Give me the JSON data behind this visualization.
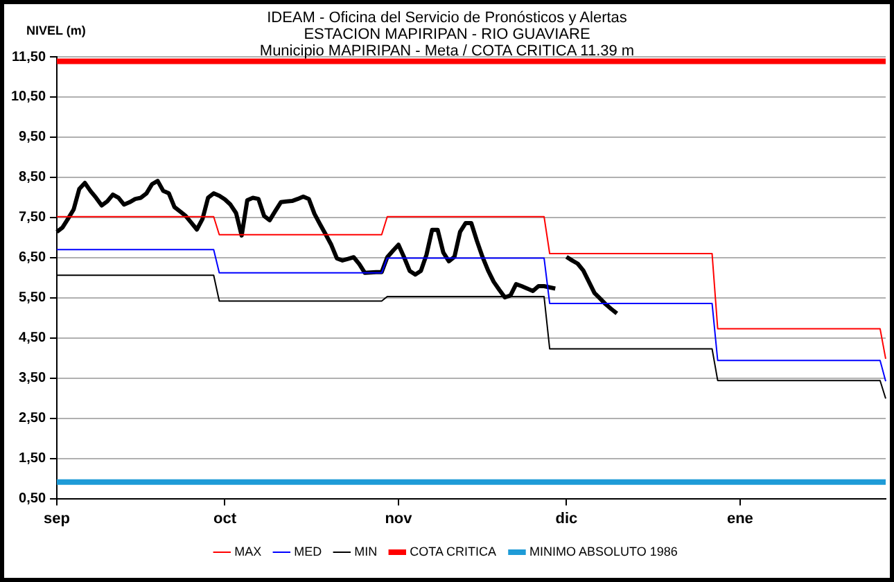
{
  "chart_data": {
    "type": "line",
    "title": "IDEAM - Oficina del Servicio de Pronósticos y Alertas",
    "subtitle": "ESTACION MAPIRIPAN - RIO GUAVIARE\nMunicipio MAPIRIPAN - Meta / COTA CRITICA 11.39 m",
    "ylabel": "NIVEL (m)",
    "categories": [
      "sep",
      null,
      null,
      null,
      null,
      null,
      null,
      null,
      null,
      null,
      null,
      null,
      null,
      null,
      null,
      null,
      null,
      null,
      null,
      null,
      null,
      null,
      null,
      null,
      null,
      null,
      null,
      null,
      null,
      null,
      "oct",
      null,
      null,
      null,
      null,
      null,
      null,
      null,
      null,
      null,
      null,
      null,
      null,
      null,
      null,
      null,
      null,
      null,
      null,
      null,
      null,
      null,
      null,
      null,
      null,
      null,
      null,
      null,
      null,
      null,
      null,
      "nov",
      null,
      null,
      null,
      null,
      null,
      null,
      null,
      null,
      null,
      null,
      null,
      null,
      null,
      null,
      null,
      null,
      null,
      null,
      null,
      null,
      null,
      null,
      null,
      null,
      null,
      null,
      null,
      null,
      null,
      "dic",
      null,
      null,
      null,
      null,
      null,
      null,
      null,
      null,
      null,
      null,
      null,
      null,
      null,
      null,
      null,
      null,
      null,
      null,
      null,
      null,
      null,
      null,
      null,
      null,
      null,
      null,
      null,
      null,
      null,
      null,
      "ene",
      null,
      null,
      null,
      null,
      null,
      null,
      null,
      null,
      null,
      null,
      null,
      null,
      null,
      null,
      null,
      null,
      null,
      null,
      null,
      null,
      null,
      null,
      null,
      null,
      null,
      null
    ],
    "ylim": [
      0.5,
      11.5
    ],
    "yticks": [
      {
        "value": 0.5,
        "label": "0,50"
      },
      {
        "value": 1.5,
        "label": "1,50"
      },
      {
        "value": 2.5,
        "label": "2,50"
      },
      {
        "value": 3.5,
        "label": "3,50"
      },
      {
        "value": 4.5,
        "label": "4,50"
      },
      {
        "value": 5.5,
        "label": "5,50"
      },
      {
        "value": 6.5,
        "label": "6,50"
      },
      {
        "value": 7.5,
        "label": "7,50"
      },
      {
        "value": 8.5,
        "label": "8,50"
      },
      {
        "value": 9.5,
        "label": "9,50"
      },
      {
        "value": 10.5,
        "label": "10,50"
      },
      {
        "value": 11.5,
        "label": "11,50"
      }
    ],
    "grid": "y",
    "legend": "bottom",
    "marker": "none",
    "ref_lines": [
      {
        "axis": "y",
        "value": 11.39,
        "label": "COTA CRITICA",
        "color": "#ff0000"
      },
      {
        "axis": "y",
        "value": 0.91,
        "label": "MINIMO ABSOLUTO 1986",
        "color": "#1e9bd7"
      }
    ],
    "series": [
      {
        "name": "MAX",
        "color": "#ff0000",
        "values": [
          7.52,
          7.52,
          7.52,
          7.52,
          7.52,
          7.52,
          7.52,
          7.52,
          7.52,
          7.52,
          7.52,
          7.52,
          7.52,
          7.52,
          7.52,
          7.52,
          7.52,
          7.52,
          7.52,
          7.52,
          7.52,
          7.52,
          7.52,
          7.52,
          7.52,
          7.52,
          7.52,
          7.52,
          7.52,
          7.07,
          7.07,
          7.07,
          7.07,
          7.07,
          7.07,
          7.07,
          7.07,
          7.07,
          7.07,
          7.07,
          7.07,
          7.07,
          7.07,
          7.07,
          7.07,
          7.07,
          7.07,
          7.07,
          7.07,
          7.07,
          7.07,
          7.07,
          7.07,
          7.07,
          7.07,
          7.07,
          7.07,
          7.07,
          7.07,
          7.52,
          7.52,
          7.52,
          7.52,
          7.52,
          7.52,
          7.52,
          7.52,
          7.52,
          7.52,
          7.52,
          7.52,
          7.52,
          7.52,
          7.52,
          7.52,
          7.52,
          7.52,
          7.52,
          7.52,
          7.52,
          7.52,
          7.52,
          7.52,
          7.52,
          7.52,
          7.52,
          7.52,
          7.52,
          6.6,
          6.6,
          6.6,
          6.6,
          6.6,
          6.6,
          6.6,
          6.6,
          6.6,
          6.6,
          6.6,
          6.6,
          6.6,
          6.6,
          6.6,
          6.6,
          6.6,
          6.6,
          6.6,
          6.6,
          6.6,
          6.6,
          6.6,
          6.6,
          6.6,
          6.6,
          6.6,
          6.6,
          6.6,
          6.6,
          4.73,
          4.73,
          4.73,
          4.73,
          4.73,
          4.73,
          4.73,
          4.73,
          4.73,
          4.73,
          4.73,
          4.73,
          4.73,
          4.73,
          4.73,
          4.73,
          4.73,
          4.73,
          4.73,
          4.73,
          4.73,
          4.73,
          4.73,
          4.73,
          4.73,
          4.73,
          4.73,
          4.73,
          4.73,
          4.73,
          3.98
        ]
      },
      {
        "name": "MED",
        "color": "#0000ff",
        "values": [
          6.7,
          6.7,
          6.7,
          6.7,
          6.7,
          6.7,
          6.7,
          6.7,
          6.7,
          6.7,
          6.7,
          6.7,
          6.7,
          6.7,
          6.7,
          6.7,
          6.7,
          6.7,
          6.7,
          6.7,
          6.7,
          6.7,
          6.7,
          6.7,
          6.7,
          6.7,
          6.7,
          6.7,
          6.7,
          6.12,
          6.12,
          6.12,
          6.12,
          6.12,
          6.12,
          6.12,
          6.12,
          6.12,
          6.12,
          6.12,
          6.12,
          6.12,
          6.12,
          6.12,
          6.12,
          6.12,
          6.12,
          6.12,
          6.12,
          6.12,
          6.12,
          6.12,
          6.12,
          6.12,
          6.12,
          6.12,
          6.12,
          6.12,
          6.12,
          6.49,
          6.49,
          6.49,
          6.49,
          6.49,
          6.49,
          6.49,
          6.49,
          6.49,
          6.49,
          6.49,
          6.49,
          6.49,
          6.49,
          6.49,
          6.49,
          6.49,
          6.49,
          6.49,
          6.49,
          6.49,
          6.49,
          6.49,
          6.49,
          6.49,
          6.49,
          6.49,
          6.49,
          6.49,
          5.36,
          5.36,
          5.36,
          5.36,
          5.36,
          5.36,
          5.36,
          5.36,
          5.36,
          5.36,
          5.36,
          5.36,
          5.36,
          5.36,
          5.36,
          5.36,
          5.36,
          5.36,
          5.36,
          5.36,
          5.36,
          5.36,
          5.36,
          5.36,
          5.36,
          5.36,
          5.36,
          5.36,
          5.36,
          5.36,
          3.94,
          3.94,
          3.94,
          3.94,
          3.94,
          3.94,
          3.94,
          3.94,
          3.94,
          3.94,
          3.94,
          3.94,
          3.94,
          3.94,
          3.94,
          3.94,
          3.94,
          3.94,
          3.94,
          3.94,
          3.94,
          3.94,
          3.94,
          3.94,
          3.94,
          3.94,
          3.94,
          3.94,
          3.94,
          3.94,
          3.42
        ]
      },
      {
        "name": "MIN",
        "color": "#000000",
        "values": [
          6.06,
          6.06,
          6.06,
          6.06,
          6.06,
          6.06,
          6.06,
          6.06,
          6.06,
          6.06,
          6.06,
          6.06,
          6.06,
          6.06,
          6.06,
          6.06,
          6.06,
          6.06,
          6.06,
          6.06,
          6.06,
          6.06,
          6.06,
          6.06,
          6.06,
          6.06,
          6.06,
          6.06,
          6.06,
          5.42,
          5.42,
          5.42,
          5.42,
          5.42,
          5.42,
          5.42,
          5.42,
          5.42,
          5.42,
          5.42,
          5.42,
          5.42,
          5.42,
          5.42,
          5.42,
          5.42,
          5.42,
          5.42,
          5.42,
          5.42,
          5.42,
          5.42,
          5.42,
          5.42,
          5.42,
          5.42,
          5.42,
          5.42,
          5.42,
          5.53,
          5.53,
          5.53,
          5.53,
          5.53,
          5.53,
          5.53,
          5.53,
          5.53,
          5.53,
          5.53,
          5.53,
          5.53,
          5.53,
          5.53,
          5.53,
          5.53,
          5.53,
          5.53,
          5.53,
          5.53,
          5.53,
          5.53,
          5.53,
          5.53,
          5.53,
          5.53,
          5.53,
          5.53,
          4.23,
          4.23,
          4.23,
          4.23,
          4.23,
          4.23,
          4.23,
          4.23,
          4.23,
          4.23,
          4.23,
          4.23,
          4.23,
          4.23,
          4.23,
          4.23,
          4.23,
          4.23,
          4.23,
          4.23,
          4.23,
          4.23,
          4.23,
          4.23,
          4.23,
          4.23,
          4.23,
          4.23,
          4.23,
          4.23,
          3.44,
          3.44,
          3.44,
          3.44,
          3.44,
          3.44,
          3.44,
          3.44,
          3.44,
          3.44,
          3.44,
          3.44,
          3.44,
          3.44,
          3.44,
          3.44,
          3.44,
          3.44,
          3.44,
          3.44,
          3.44,
          3.44,
          3.44,
          3.44,
          3.44,
          3.44,
          3.44,
          3.44,
          3.44,
          3.44,
          2.99
        ]
      },
      {
        "color": "#000000",
        "values": [
          7.14,
          7.25,
          7.47,
          7.7,
          8.21,
          8.36,
          8.16,
          7.99,
          7.8,
          7.9,
          8.07,
          7.99,
          7.82,
          7.88,
          7.96,
          7.99,
          8.1,
          8.33,
          8.41,
          8.16,
          8.1,
          7.76,
          7.65,
          7.54,
          7.37,
          7.2,
          7.46,
          7.99,
          8.1,
          8.04,
          7.95,
          7.82,
          7.61,
          7.05,
          7.93,
          7.99,
          7.96,
          7.54,
          7.43,
          7.66,
          7.88,
          7.9,
          7.91,
          7.96,
          8.02,
          7.96,
          7.59,
          7.33,
          7.08,
          6.82,
          6.48,
          6.43,
          6.47,
          6.51,
          6.34,
          6.12,
          6.13,
          6.14,
          6.14,
          6.51,
          6.67,
          6.82,
          6.51,
          6.17,
          6.08,
          6.17,
          6.57,
          7.19,
          7.19,
          6.63,
          6.41,
          6.52,
          7.14,
          7.36,
          7.36,
          6.92,
          6.52,
          6.18,
          5.9,
          5.7,
          5.51,
          5.56,
          5.84,
          5.79,
          5.73,
          5.67,
          5.79,
          5.79,
          5.76,
          5.73,
          null,
          6.52,
          6.43,
          6.35,
          6.18,
          5.9,
          5.62,
          5.48,
          5.34,
          5.22,
          5.11,
          null,
          null,
          null,
          null,
          null,
          null,
          null,
          null,
          null,
          null,
          null,
          null,
          null,
          null,
          null,
          null,
          null,
          null,
          null,
          null,
          null,
          null,
          null,
          null,
          null,
          null,
          null,
          null,
          null,
          null,
          null,
          null,
          null,
          null,
          null,
          null,
          null,
          null,
          null,
          null,
          null,
          null,
          null,
          null,
          null,
          null,
          null,
          null
        ]
      }
    ]
  }
}
